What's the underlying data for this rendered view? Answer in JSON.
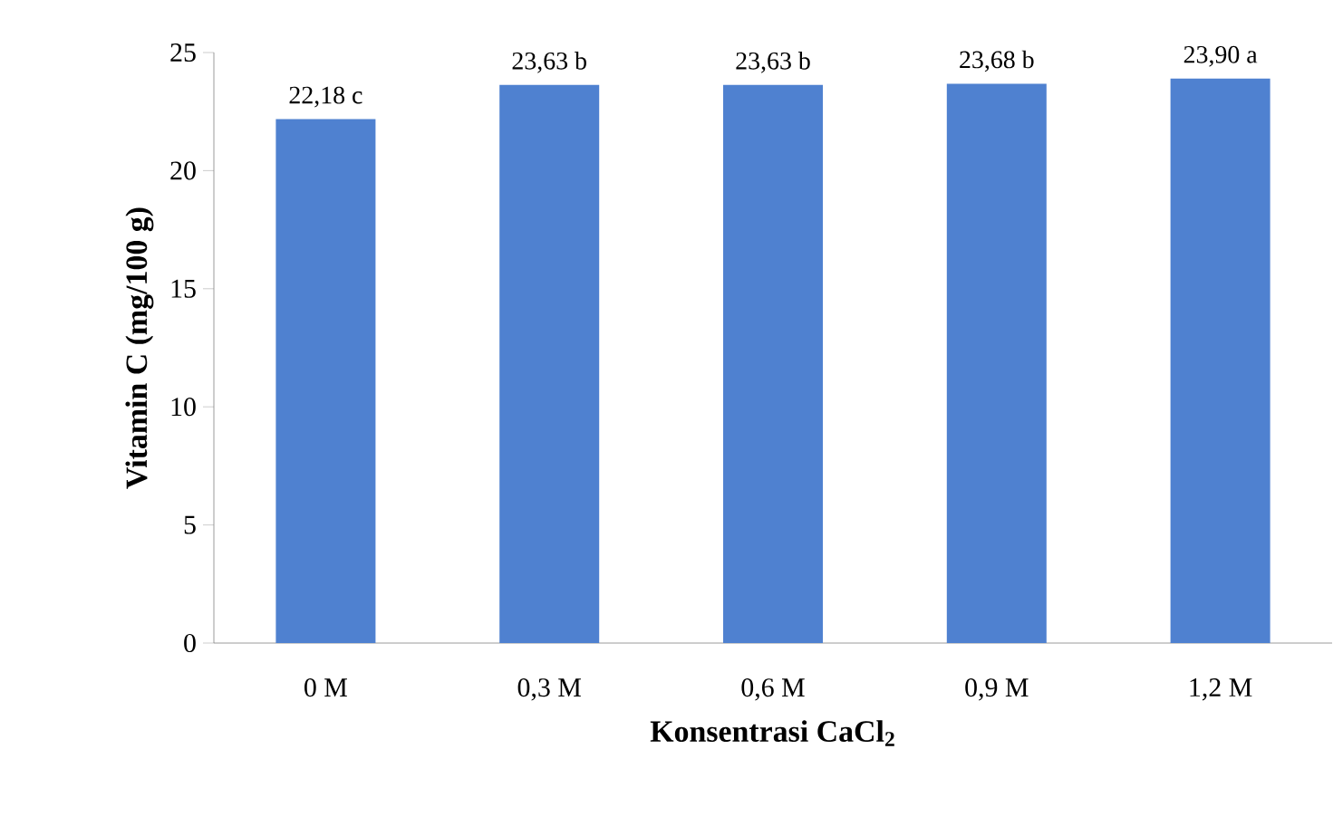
{
  "chart_data": {
    "type": "bar",
    "xlabel": "Konsentrasi CaCl$_{2}$",
    "ylabel": "Vitamin C (mg/100 g)",
    "categories": [
      "0 M",
      "0,3 M",
      "0,6 M",
      "0,9 M",
      "1,2 M"
    ],
    "values": [
      22.18,
      23.63,
      23.63,
      23.68,
      23.9
    ],
    "value_labels": [
      "22,18 c",
      "23,63 b",
      "23,63 b",
      "23,68 b",
      "23,90 a"
    ],
    "color": "#4f81d0",
    "ylim": [
      0,
      25
    ],
    "yticks": [
      0,
      5,
      10,
      15,
      20,
      25
    ],
    "grid": false
  }
}
